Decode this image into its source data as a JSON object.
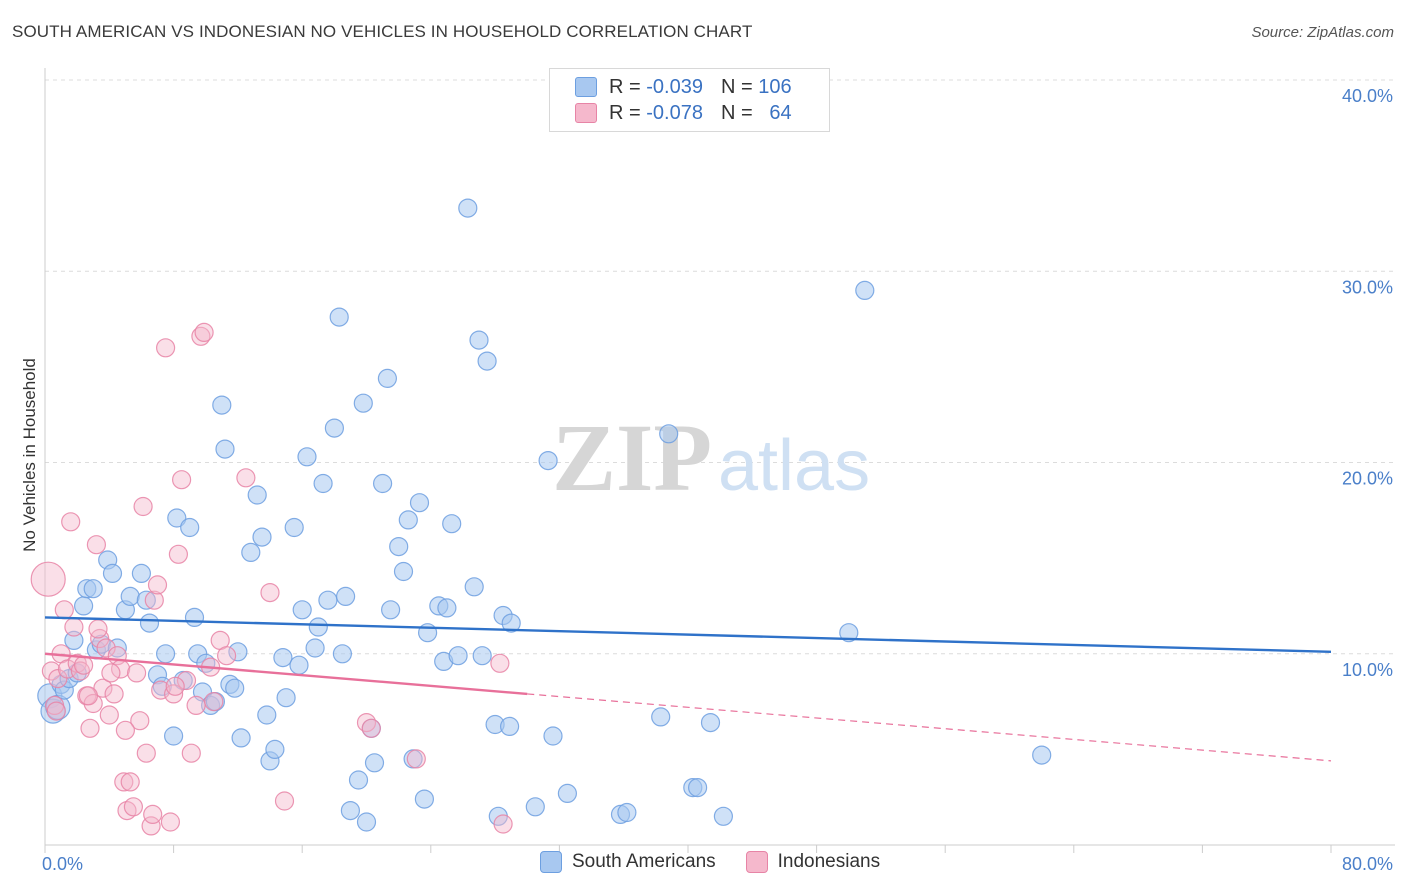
{
  "title": "SOUTH AMERICAN VS INDONESIAN NO VEHICLES IN HOUSEHOLD CORRELATION CHART",
  "source": "Source: ZipAtlas.com",
  "watermark": {
    "zip": "ZIP",
    "atlas": "atlas"
  },
  "legend": {
    "rows": [
      {
        "r_label": "R =",
        "r_value": "-0.039",
        "n_label": "N =",
        "n_value": "106",
        "color": "#a8c8f0",
        "border": "#6d9fe0"
      },
      {
        "r_label": "R =",
        "r_value": "-0.078",
        "n_label": "N =",
        "n_value": "64",
        "color": "#f5b8cc",
        "border": "#e784a6"
      }
    ]
  },
  "bottom_legend": [
    {
      "label": "South Americans",
      "color": "#a8c8f0",
      "border": "#6d9fe0"
    },
    {
      "label": "Indonesians",
      "color": "#f5b8cc",
      "border": "#e784a6"
    }
  ],
  "chart_data": {
    "type": "scatter",
    "xlabel": "",
    "ylabel": "No Vehicles in Household",
    "xlim": [
      0,
      80
    ],
    "ylim": [
      0,
      40
    ],
    "x_tick_labels": [
      {
        "value": 0,
        "label": "0.0%"
      },
      {
        "value": 80,
        "label": "80.0%"
      }
    ],
    "y_tick_labels": [
      {
        "value": 10,
        "label": "10.0%"
      },
      {
        "value": 20,
        "label": "20.0%"
      },
      {
        "value": 30,
        "label": "30.0%"
      },
      {
        "value": 40,
        "label": "40.0%"
      }
    ],
    "grid": true,
    "series": [
      {
        "name": "South Americans",
        "color": "#6d9fe0",
        "fill": "#a8c8f0",
        "trend": {
          "x": [
            0,
            80
          ],
          "y": [
            11.9,
            10.1
          ],
          "color": "#2f72c9"
        },
        "points": [
          [
            0.3,
            7.8
          ],
          [
            0.5,
            7.0
          ],
          [
            0.8,
            7.2
          ],
          [
            1.0,
            8.4
          ],
          [
            1.2,
            8.1
          ],
          [
            1.5,
            8.7
          ],
          [
            1.8,
            10.7
          ],
          [
            2.0,
            9.0
          ],
          [
            2.4,
            12.5
          ],
          [
            2.6,
            13.4
          ],
          [
            3.0,
            13.4
          ],
          [
            3.2,
            10.2
          ],
          [
            3.5,
            10.5
          ],
          [
            3.9,
            14.9
          ],
          [
            4.2,
            14.2
          ],
          [
            4.5,
            10.3
          ],
          [
            5.0,
            12.3
          ],
          [
            5.3,
            13.0
          ],
          [
            6.0,
            14.2
          ],
          [
            6.3,
            12.8
          ],
          [
            6.5,
            11.6
          ],
          [
            7.0,
            8.9
          ],
          [
            7.3,
            8.3
          ],
          [
            7.5,
            10.0
          ],
          [
            8.0,
            5.7
          ],
          [
            8.2,
            17.1
          ],
          [
            8.6,
            8.6
          ],
          [
            9.0,
            16.6
          ],
          [
            9.3,
            11.9
          ],
          [
            9.5,
            10.0
          ],
          [
            9.8,
            8.0
          ],
          [
            10.0,
            9.5
          ],
          [
            10.3,
            7.3
          ],
          [
            10.6,
            7.5
          ],
          [
            11.0,
            23.0
          ],
          [
            11.2,
            20.7
          ],
          [
            11.5,
            8.4
          ],
          [
            11.8,
            8.2
          ],
          [
            12.0,
            10.1
          ],
          [
            12.2,
            5.6
          ],
          [
            12.8,
            15.3
          ],
          [
            13.2,
            18.3
          ],
          [
            13.5,
            16.1
          ],
          [
            13.8,
            6.8
          ],
          [
            14.0,
            4.4
          ],
          [
            14.3,
            5.0
          ],
          [
            14.8,
            9.8
          ],
          [
            15.0,
            7.7
          ],
          [
            15.5,
            16.6
          ],
          [
            15.8,
            9.4
          ],
          [
            16.0,
            12.3
          ],
          [
            16.3,
            20.3
          ],
          [
            16.8,
            10.3
          ],
          [
            17.0,
            11.4
          ],
          [
            17.3,
            18.9
          ],
          [
            17.6,
            12.8
          ],
          [
            18.0,
            21.8
          ],
          [
            18.3,
            27.6
          ],
          [
            18.5,
            10.0
          ],
          [
            18.7,
            13.0
          ],
          [
            19.5,
            3.4
          ],
          [
            19.0,
            1.8
          ],
          [
            19.8,
            23.1
          ],
          [
            20.0,
            1.2
          ],
          [
            20.3,
            6.1
          ],
          [
            20.5,
            4.3
          ],
          [
            21.0,
            18.9
          ],
          [
            21.3,
            24.4
          ],
          [
            21.5,
            12.3
          ],
          [
            22.0,
            15.6
          ],
          [
            22.3,
            14.3
          ],
          [
            22.6,
            17.0
          ],
          [
            22.9,
            4.5
          ],
          [
            23.3,
            17.9
          ],
          [
            23.6,
            2.4
          ],
          [
            23.8,
            11.1
          ],
          [
            24.5,
            12.5
          ],
          [
            24.8,
            9.6
          ],
          [
            25.0,
            12.4
          ],
          [
            25.3,
            16.8
          ],
          [
            25.7,
            9.9
          ],
          [
            26.3,
            33.3
          ],
          [
            26.7,
            13.5
          ],
          [
            27.0,
            26.4
          ],
          [
            27.2,
            9.9
          ],
          [
            27.5,
            25.3
          ],
          [
            28.0,
            6.3
          ],
          [
            28.2,
            1.5
          ],
          [
            28.5,
            12.0
          ],
          [
            28.9,
            6.2
          ],
          [
            29.0,
            11.6
          ],
          [
            30.5,
            2.0
          ],
          [
            31.3,
            20.1
          ],
          [
            31.6,
            5.7
          ],
          [
            32.5,
            2.7
          ],
          [
            35.8,
            1.6
          ],
          [
            36.2,
            1.7
          ],
          [
            38.3,
            6.7
          ],
          [
            38.8,
            21.5
          ],
          [
            40.3,
            3.0
          ],
          [
            40.6,
            3.0
          ],
          [
            41.4,
            6.4
          ],
          [
            42.2,
            1.5
          ],
          [
            50.0,
            11.1
          ],
          [
            51.0,
            29.0
          ],
          [
            62.0,
            4.7
          ]
        ]
      },
      {
        "name": "Indonesians",
        "color": "#e784a6",
        "fill": "#f5b8cc",
        "trend": {
          "x": [
            0,
            30
          ],
          "y": [
            10.0,
            7.9
          ],
          "color": "#e8709a"
        },
        "trend_extended": {
          "x": [
            30,
            80
          ],
          "y": [
            7.9,
            4.4
          ],
          "color": "#e8709a"
        },
        "points": [
          [
            0.2,
            13.9
          ],
          [
            0.4,
            9.1
          ],
          [
            0.6,
            7.3
          ],
          [
            0.8,
            8.7
          ],
          [
            1.0,
            10.0
          ],
          [
            1.2,
            12.3
          ],
          [
            1.4,
            9.2
          ],
          [
            1.6,
            16.9
          ],
          [
            1.8,
            11.4
          ],
          [
            2.0,
            9.5
          ],
          [
            2.2,
            9.1
          ],
          [
            2.4,
            9.4
          ],
          [
            2.6,
            7.8
          ],
          [
            2.8,
            6.1
          ],
          [
            3.0,
            7.4
          ],
          [
            3.2,
            15.7
          ],
          [
            3.4,
            10.8
          ],
          [
            3.6,
            8.2
          ],
          [
            3.8,
            10.3
          ],
          [
            4.0,
            6.8
          ],
          [
            4.3,
            7.9
          ],
          [
            4.5,
            9.9
          ],
          [
            4.7,
            9.2
          ],
          [
            4.9,
            3.3
          ],
          [
            5.1,
            1.8
          ],
          [
            5.3,
            3.3
          ],
          [
            5.5,
            2.0
          ],
          [
            5.7,
            9.0
          ],
          [
            5.9,
            6.5
          ],
          [
            6.1,
            17.7
          ],
          [
            6.3,
            4.8
          ],
          [
            6.6,
            1.0
          ],
          [
            6.8,
            12.8
          ],
          [
            7.0,
            13.6
          ],
          [
            7.2,
            8.1
          ],
          [
            7.5,
            26.0
          ],
          [
            7.8,
            1.2
          ],
          [
            8.0,
            7.9
          ],
          [
            8.3,
            15.2
          ],
          [
            8.5,
            19.1
          ],
          [
            8.8,
            8.6
          ],
          [
            9.1,
            4.8
          ],
          [
            9.4,
            7.3
          ],
          [
            9.7,
            26.6
          ],
          [
            9.9,
            26.8
          ],
          [
            10.3,
            9.3
          ],
          [
            10.5,
            7.5
          ],
          [
            10.9,
            10.7
          ],
          [
            11.3,
            9.9
          ],
          [
            12.5,
            19.2
          ],
          [
            14.0,
            13.2
          ],
          [
            14.9,
            2.3
          ],
          [
            20.0,
            6.4
          ],
          [
            20.3,
            6.1
          ],
          [
            23.1,
            4.5
          ],
          [
            28.3,
            9.5
          ],
          [
            28.5,
            1.1
          ],
          [
            2.7,
            7.8
          ],
          [
            4.1,
            9.0
          ],
          [
            6.7,
            1.6
          ],
          [
            8.1,
            8.3
          ],
          [
            3.3,
            11.3
          ],
          [
            5.0,
            6.0
          ],
          [
            0.7,
            7.0
          ]
        ]
      }
    ]
  }
}
